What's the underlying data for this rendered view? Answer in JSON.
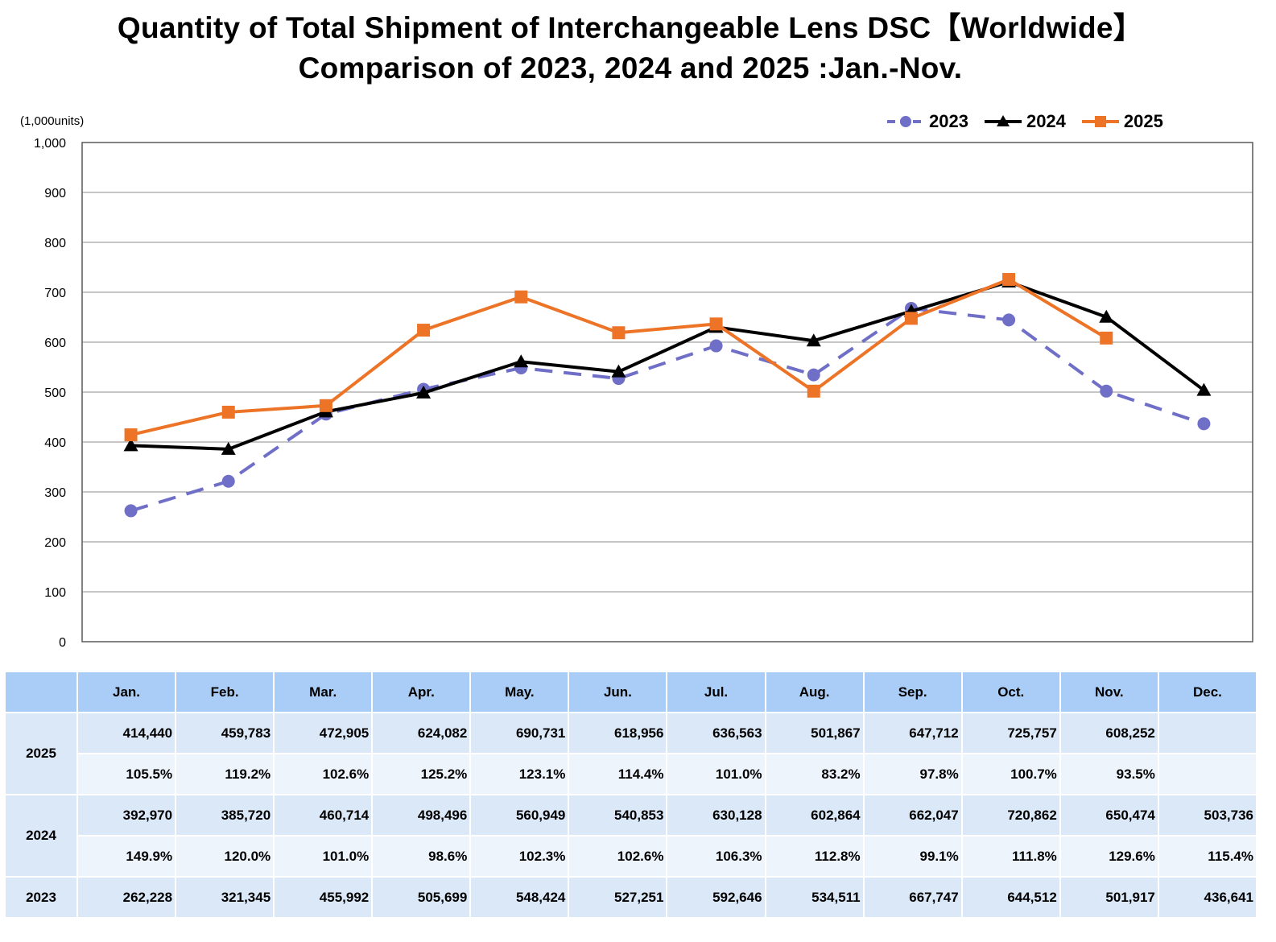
{
  "title_line1": "Quantity of Total Shipment of Interchangeable Lens DSC【Worldwide】",
  "title_line2": "Comparison of 2023, 2024 and 2025 :Jan.-Nov.",
  "unit_label": "(1,000units)",
  "colors": {
    "2023": "#6f6fc8",
    "2024": "#000000",
    "2025": "#ed7426",
    "header_bg": "#a9cdf6",
    "row_dark": "#dbe8f8",
    "row_light": "#eef4fc"
  },
  "chart_data": {
    "type": "line",
    "categories": [
      "Jan.",
      "Feb.",
      "Mar.",
      "Apr.",
      "May.",
      "Jun.",
      "Jul.",
      "Aug.",
      "Sep.",
      "Oct.",
      "Nov.",
      "Dec."
    ],
    "ylim": [
      0,
      1000
    ],
    "yticks": [
      "0",
      "100",
      "200",
      "300",
      "400",
      "500",
      "600",
      "700",
      "800",
      "900",
      "1,000"
    ],
    "grid": true,
    "legend_position": "top-right",
    "series": [
      {
        "name": "2023",
        "style": "dashed",
        "marker": "circle",
        "color": "#6f6fc8",
        "values": [
          262.228,
          321.345,
          455.992,
          505.699,
          548.424,
          527.251,
          592.646,
          534.511,
          667.747,
          644.512,
          501.917,
          436.641
        ]
      },
      {
        "name": "2024",
        "style": "solid",
        "marker": "triangle",
        "color": "#000000",
        "values": [
          392.97,
          385.72,
          460.714,
          498.496,
          560.949,
          540.853,
          630.128,
          602.864,
          662.047,
          720.862,
          650.474,
          503.736
        ]
      },
      {
        "name": "2025",
        "style": "solid",
        "marker": "square",
        "color": "#ed7426",
        "values": [
          414.44,
          459.783,
          472.905,
          624.082,
          690.731,
          618.956,
          636.563,
          501.867,
          647.712,
          725.757,
          608.252,
          null
        ]
      }
    ]
  },
  "table": {
    "months": [
      "Jan.",
      "Feb.",
      "Mar.",
      "Apr.",
      "May.",
      "Jun.",
      "Jul.",
      "Aug.",
      "Sep.",
      "Oct.",
      "Nov.",
      "Dec."
    ],
    "rows": [
      {
        "year": "2025",
        "values": [
          "414,440",
          "459,783",
          "472,905",
          "624,082",
          "690,731",
          "618,956",
          "636,563",
          "501,867",
          "647,712",
          "725,757",
          "608,252",
          ""
        ],
        "ratios": [
          "105.5%",
          "119.2%",
          "102.6%",
          "125.2%",
          "123.1%",
          "114.4%",
          "101.0%",
          "83.2%",
          "97.8%",
          "100.7%",
          "93.5%",
          ""
        ]
      },
      {
        "year": "2024",
        "values": [
          "392,970",
          "385,720",
          "460,714",
          "498,496",
          "560,949",
          "540,853",
          "630,128",
          "602,864",
          "662,047",
          "720,862",
          "650,474",
          "503,736"
        ],
        "ratios": [
          "149.9%",
          "120.0%",
          "101.0%",
          "98.6%",
          "102.3%",
          "102.6%",
          "106.3%",
          "112.8%",
          "99.1%",
          "111.8%",
          "129.6%",
          "115.4%"
        ]
      },
      {
        "year": "2023",
        "values": [
          "262,228",
          "321,345",
          "455,992",
          "505,699",
          "548,424",
          "527,251",
          "592,646",
          "534,511",
          "667,747",
          "644,512",
          "501,917",
          "436,641"
        ]
      }
    ]
  }
}
